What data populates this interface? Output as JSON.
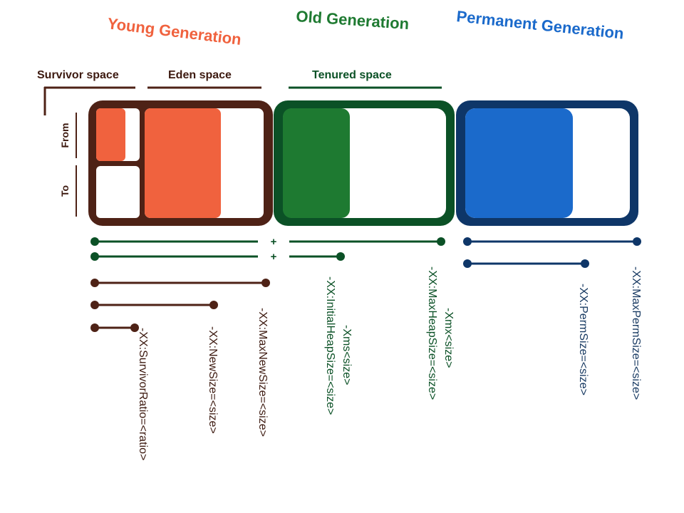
{
  "colors": {
    "young": "#f0623e",
    "young_frame": "#4e2216",
    "old": "#1e7a31",
    "old_frame": "#0b5126",
    "perm": "#1b6acb",
    "perm_frame": "#0e3668",
    "young_flag_text": "#3d1a10",
    "old_flag_text": "#0b5126",
    "perm_flag_text": "#183a62"
  },
  "generations": {
    "young": {
      "title": "Young Generation"
    },
    "old": {
      "title": "Old Generation"
    },
    "permanent": {
      "title": "Permanent Generation"
    }
  },
  "spaces": {
    "survivor": "Survivor space",
    "eden": "Eden space",
    "tenured": "Tenured space",
    "from": "From",
    "to": "To"
  },
  "separators": {
    "plus_1": "+",
    "plus_2": "+"
  },
  "flags": {
    "survivor_ratio": "-XX:SurvivorRatio=<ratio>",
    "new_size": "-XX:NewSize=<size>",
    "max_new_size": "-XX:MaxNewSize=<size>",
    "xms": "-Xms<size>",
    "initial_heap_size": "-XX:InitialHeapSize=<size>",
    "xmx": "-Xmx<size>",
    "max_heap_size": "-XX:MaxHeapSize=<size>",
    "perm_size": "-XX:PermSize=<size>",
    "max_perm_size": "-XX:MaxPermSize=<size>"
  }
}
